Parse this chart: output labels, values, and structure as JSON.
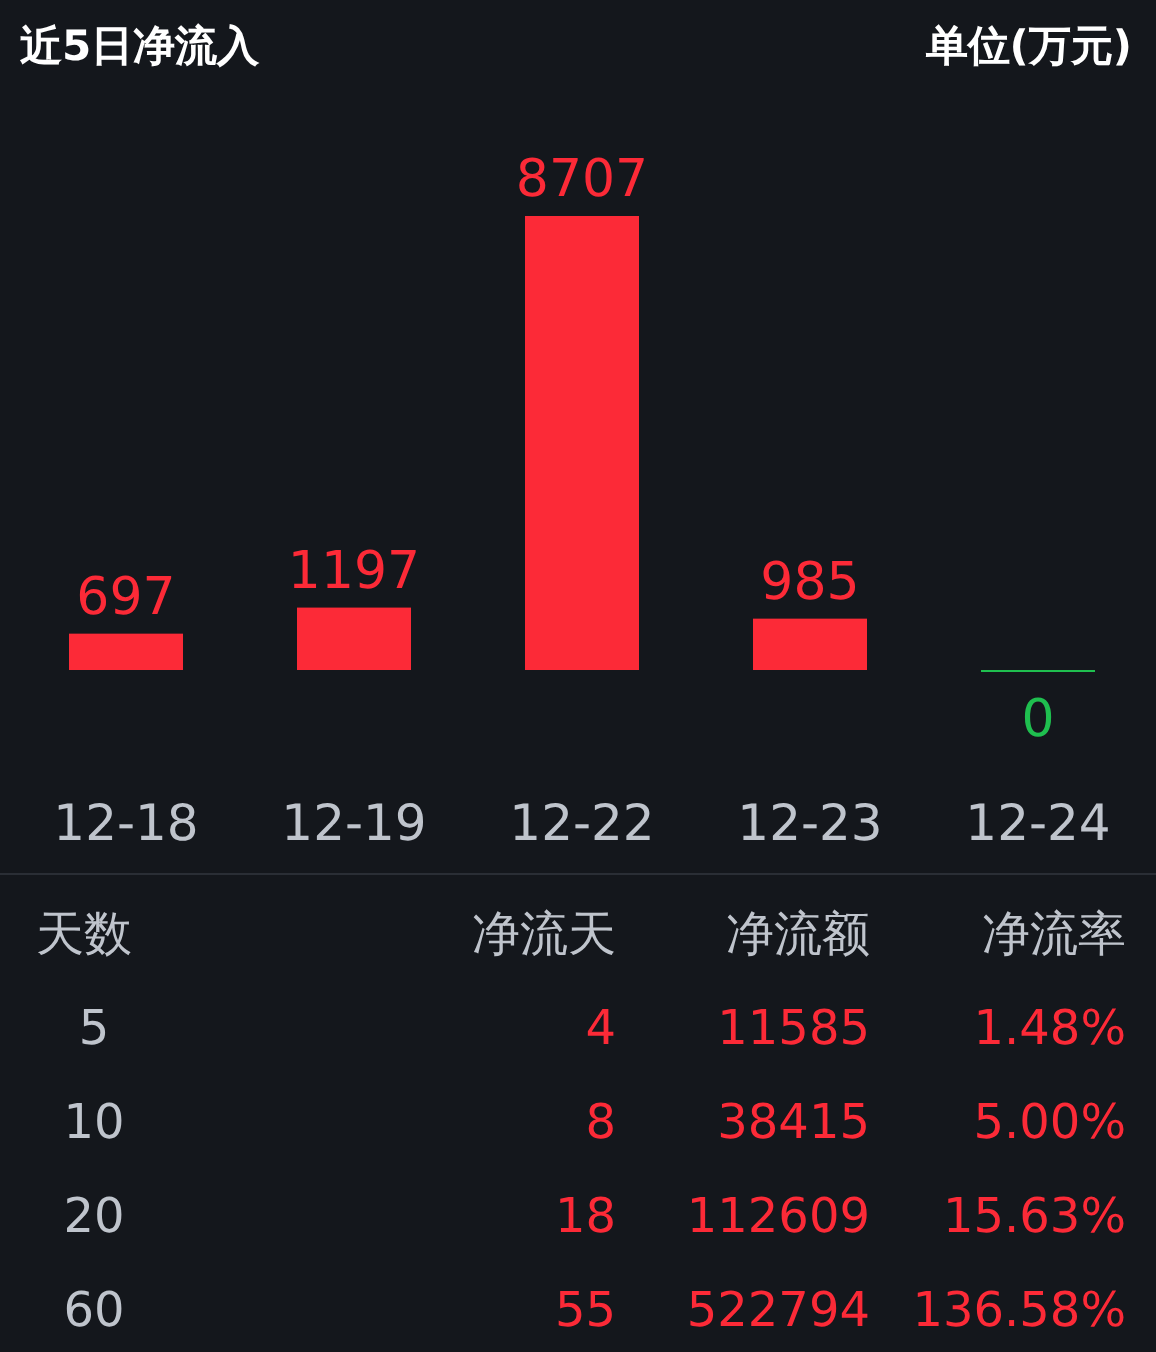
{
  "chart_data": [
    {
      "type": "bar",
      "title": "近5日净流入",
      "subtitle": "单位(万元)",
      "categories": [
        "12-18",
        "12-19",
        "12-22",
        "12-23",
        "12-24"
      ],
      "values": [
        697,
        1197,
        8707,
        985,
        0
      ],
      "colors": [
        "#fc2a37",
        "#fc2a37",
        "#fc2a37",
        "#fc2a37",
        "#1fbf4f"
      ],
      "data_labels": true
    },
    {
      "type": "other",
      "color": "#fc2a37",
      "categories": [
        "天数",
        "净流天",
        "净流额",
        "净流率"
      ],
      "y_categories": [
        "5",
        "10",
        "20",
        "60"
      ],
      "cell_labels": [
        [
          "4",
          "11585",
          "1.48%"
        ],
        [
          "8",
          "38415",
          "5.00%"
        ],
        [
          "18",
          "112609",
          "15.63%"
        ],
        [
          "55",
          "522794",
          "136.58%"
        ]
      ]
    }
  ]
}
